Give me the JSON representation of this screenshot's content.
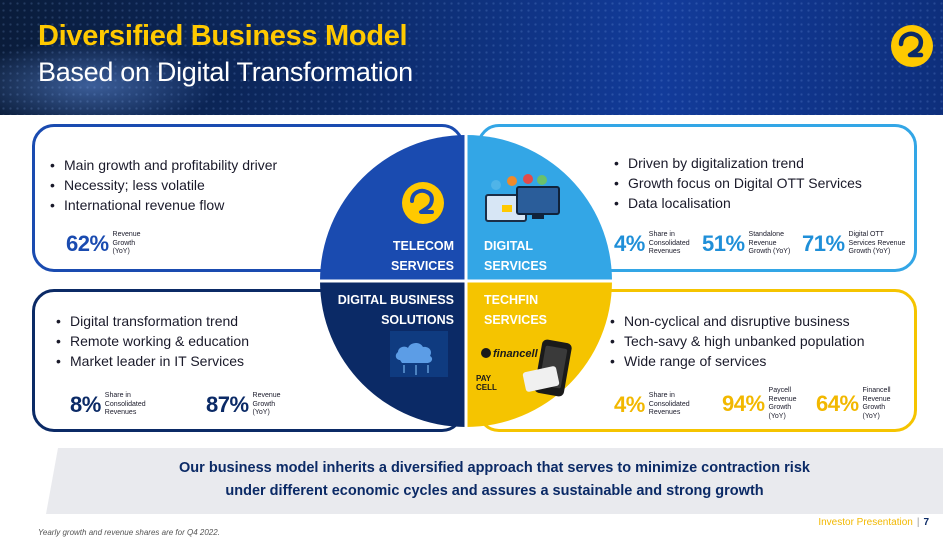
{
  "header": {
    "title": "Diversified Business Model",
    "subtitle": "Based on Digital Transformation"
  },
  "colors": {
    "yellow": "#ffc900",
    "telecom_blue": "#1a4bb0",
    "digital_sky": "#33a6e6",
    "dbs_navy": "#0b2a66",
    "techfin_yellow": "#f5c400"
  },
  "quadrants": {
    "telecom": {
      "label_line1": "TELECOM",
      "label_line2": "SERVICES",
      "icon": "turkcell-logo-icon",
      "bullets": [
        "Main growth and profitability driver",
        "Necessity; less volatile",
        "International revenue flow"
      ],
      "stats": [
        {
          "value": "62%",
          "label": "Revenue\nGrowth\n(YoY)"
        }
      ]
    },
    "digital": {
      "label_line1": "DIGITAL",
      "label_line2": "SERVICES",
      "icon": "digital-devices-icon",
      "bullets": [
        "Driven by digitalization trend",
        "Growth focus on Digital OTT Services",
        "Data localisation"
      ],
      "stats": [
        {
          "value": "4%",
          "label": "Share in\nConsolidated\nRevenues"
        },
        {
          "value": "51%",
          "label": "Standalone\nRevenue\nGrowth (YoY)"
        },
        {
          "value": "71%",
          "label": "Digital OTT\nServices Revenue\nGrowth (YoY)"
        }
      ]
    },
    "dbs": {
      "label_line1": "DIGITAL BUSINESS",
      "label_line2": "SOLUTIONS",
      "icon": "cloud-network-icon",
      "bullets": [
        "Digital transformation trend",
        "Remote working & education",
        "Market leader in IT Services"
      ],
      "stats": [
        {
          "value": "8%",
          "label": "Share in\nConsolidated\nRevenues"
        },
        {
          "value": "87%",
          "label": "Revenue\nGrowth\n(YoY)"
        }
      ]
    },
    "techfin": {
      "label_line1": "TECHFIN",
      "label_line2": "SERVICES",
      "icon": "financell-paycell-icon",
      "brand1": "financell",
      "brand2": "PAY\nCELL",
      "bullets": [
        "Non-cyclical and disruptive business",
        "Tech-savy & high unbanked population",
        "Wide range of services"
      ],
      "stats": [
        {
          "value": "4%",
          "label": "Share in\nConsolidated\nRevenues"
        },
        {
          "value": "94%",
          "label": "Paycell\nRevenue\nGrowth\n(YoY)"
        },
        {
          "value": "64%",
          "label": "Financell\nRevenue\nGrowth\n(YoY)"
        }
      ]
    }
  },
  "banner": {
    "line1": "Our business model inherits a diversified approach that serves to minimize contraction risk",
    "line2": "under different economic cycles and assures a sustainable and strong growth"
  },
  "footnote": "Yearly growth and revenue shares are for Q4 2022.",
  "footer": {
    "label": "Investor Presentation",
    "separator": "|",
    "page": "7"
  }
}
